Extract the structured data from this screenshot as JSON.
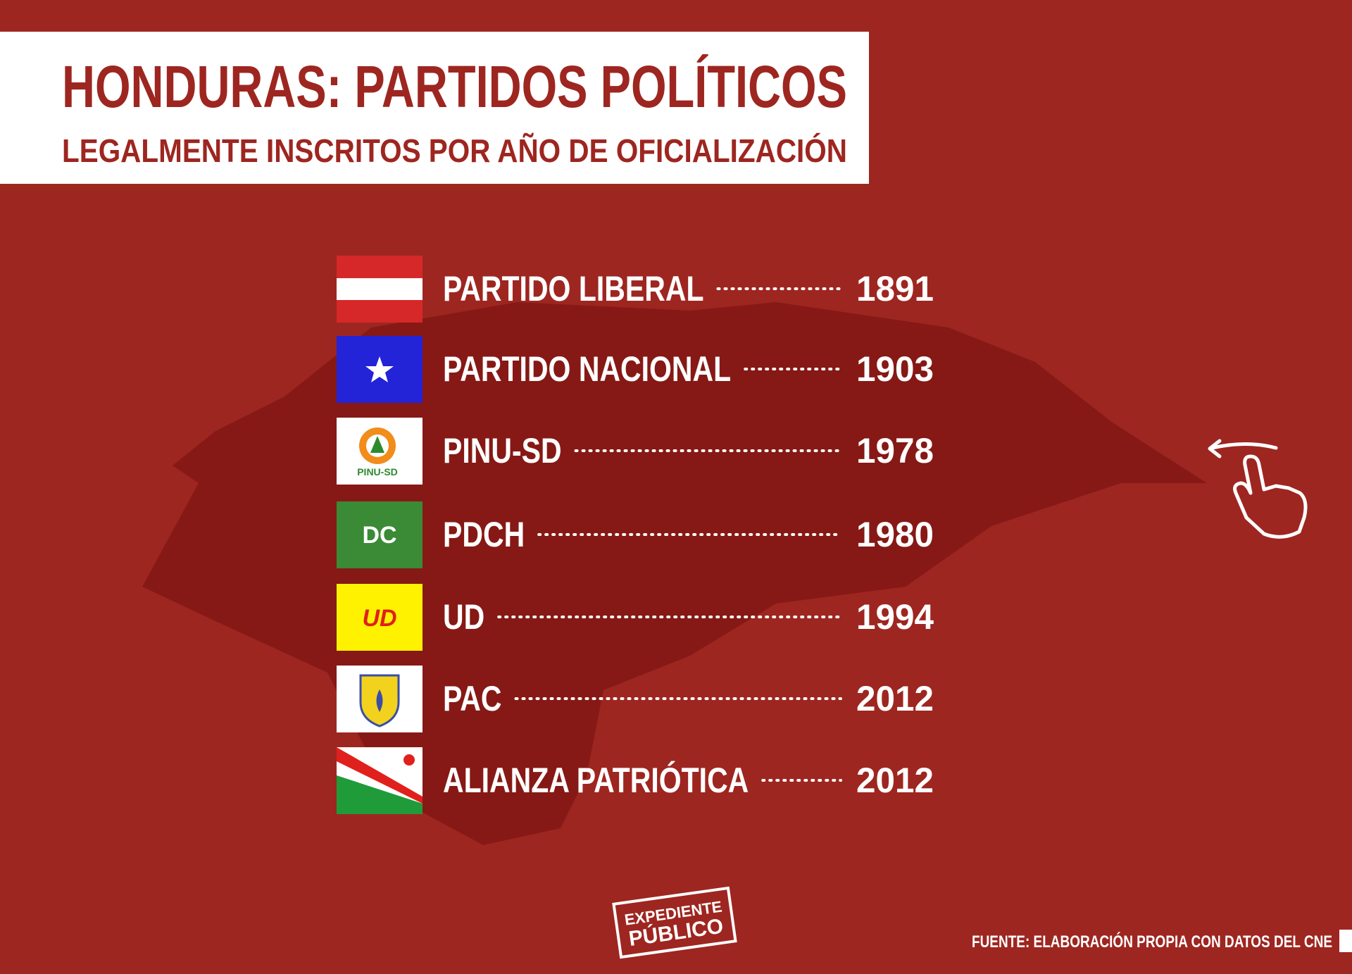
{
  "header": {
    "title": "HONDURAS: PARTIDOS POLÍTICOS",
    "subtitle": "LEGALMENTE INSCRITOS POR AÑO DE OFICIALIZACIÓN"
  },
  "parties": [
    {
      "name": "PARTIDO LIBERAL",
      "year": 1891
    },
    {
      "name": "PARTIDO NACIONAL",
      "year": 1903
    },
    {
      "name": "PINU-SD",
      "year": 1978,
      "logo_text": "PINU-SD"
    },
    {
      "name": "PDCH",
      "year": 1980,
      "logo_text": "DC"
    },
    {
      "name": "UD",
      "year": 1994,
      "logo_text": "UD"
    },
    {
      "name": "PAC",
      "year": 2012
    },
    {
      "name": "ALIANZA PATRIÓTICA",
      "year": 2012
    }
  ],
  "brand": {
    "line1": "EXPEDIENTE",
    "line2": "PÚBLICO"
  },
  "source": "FUENTE: ELABORACIÓN PROPIA CON DATOS DEL CNE"
}
